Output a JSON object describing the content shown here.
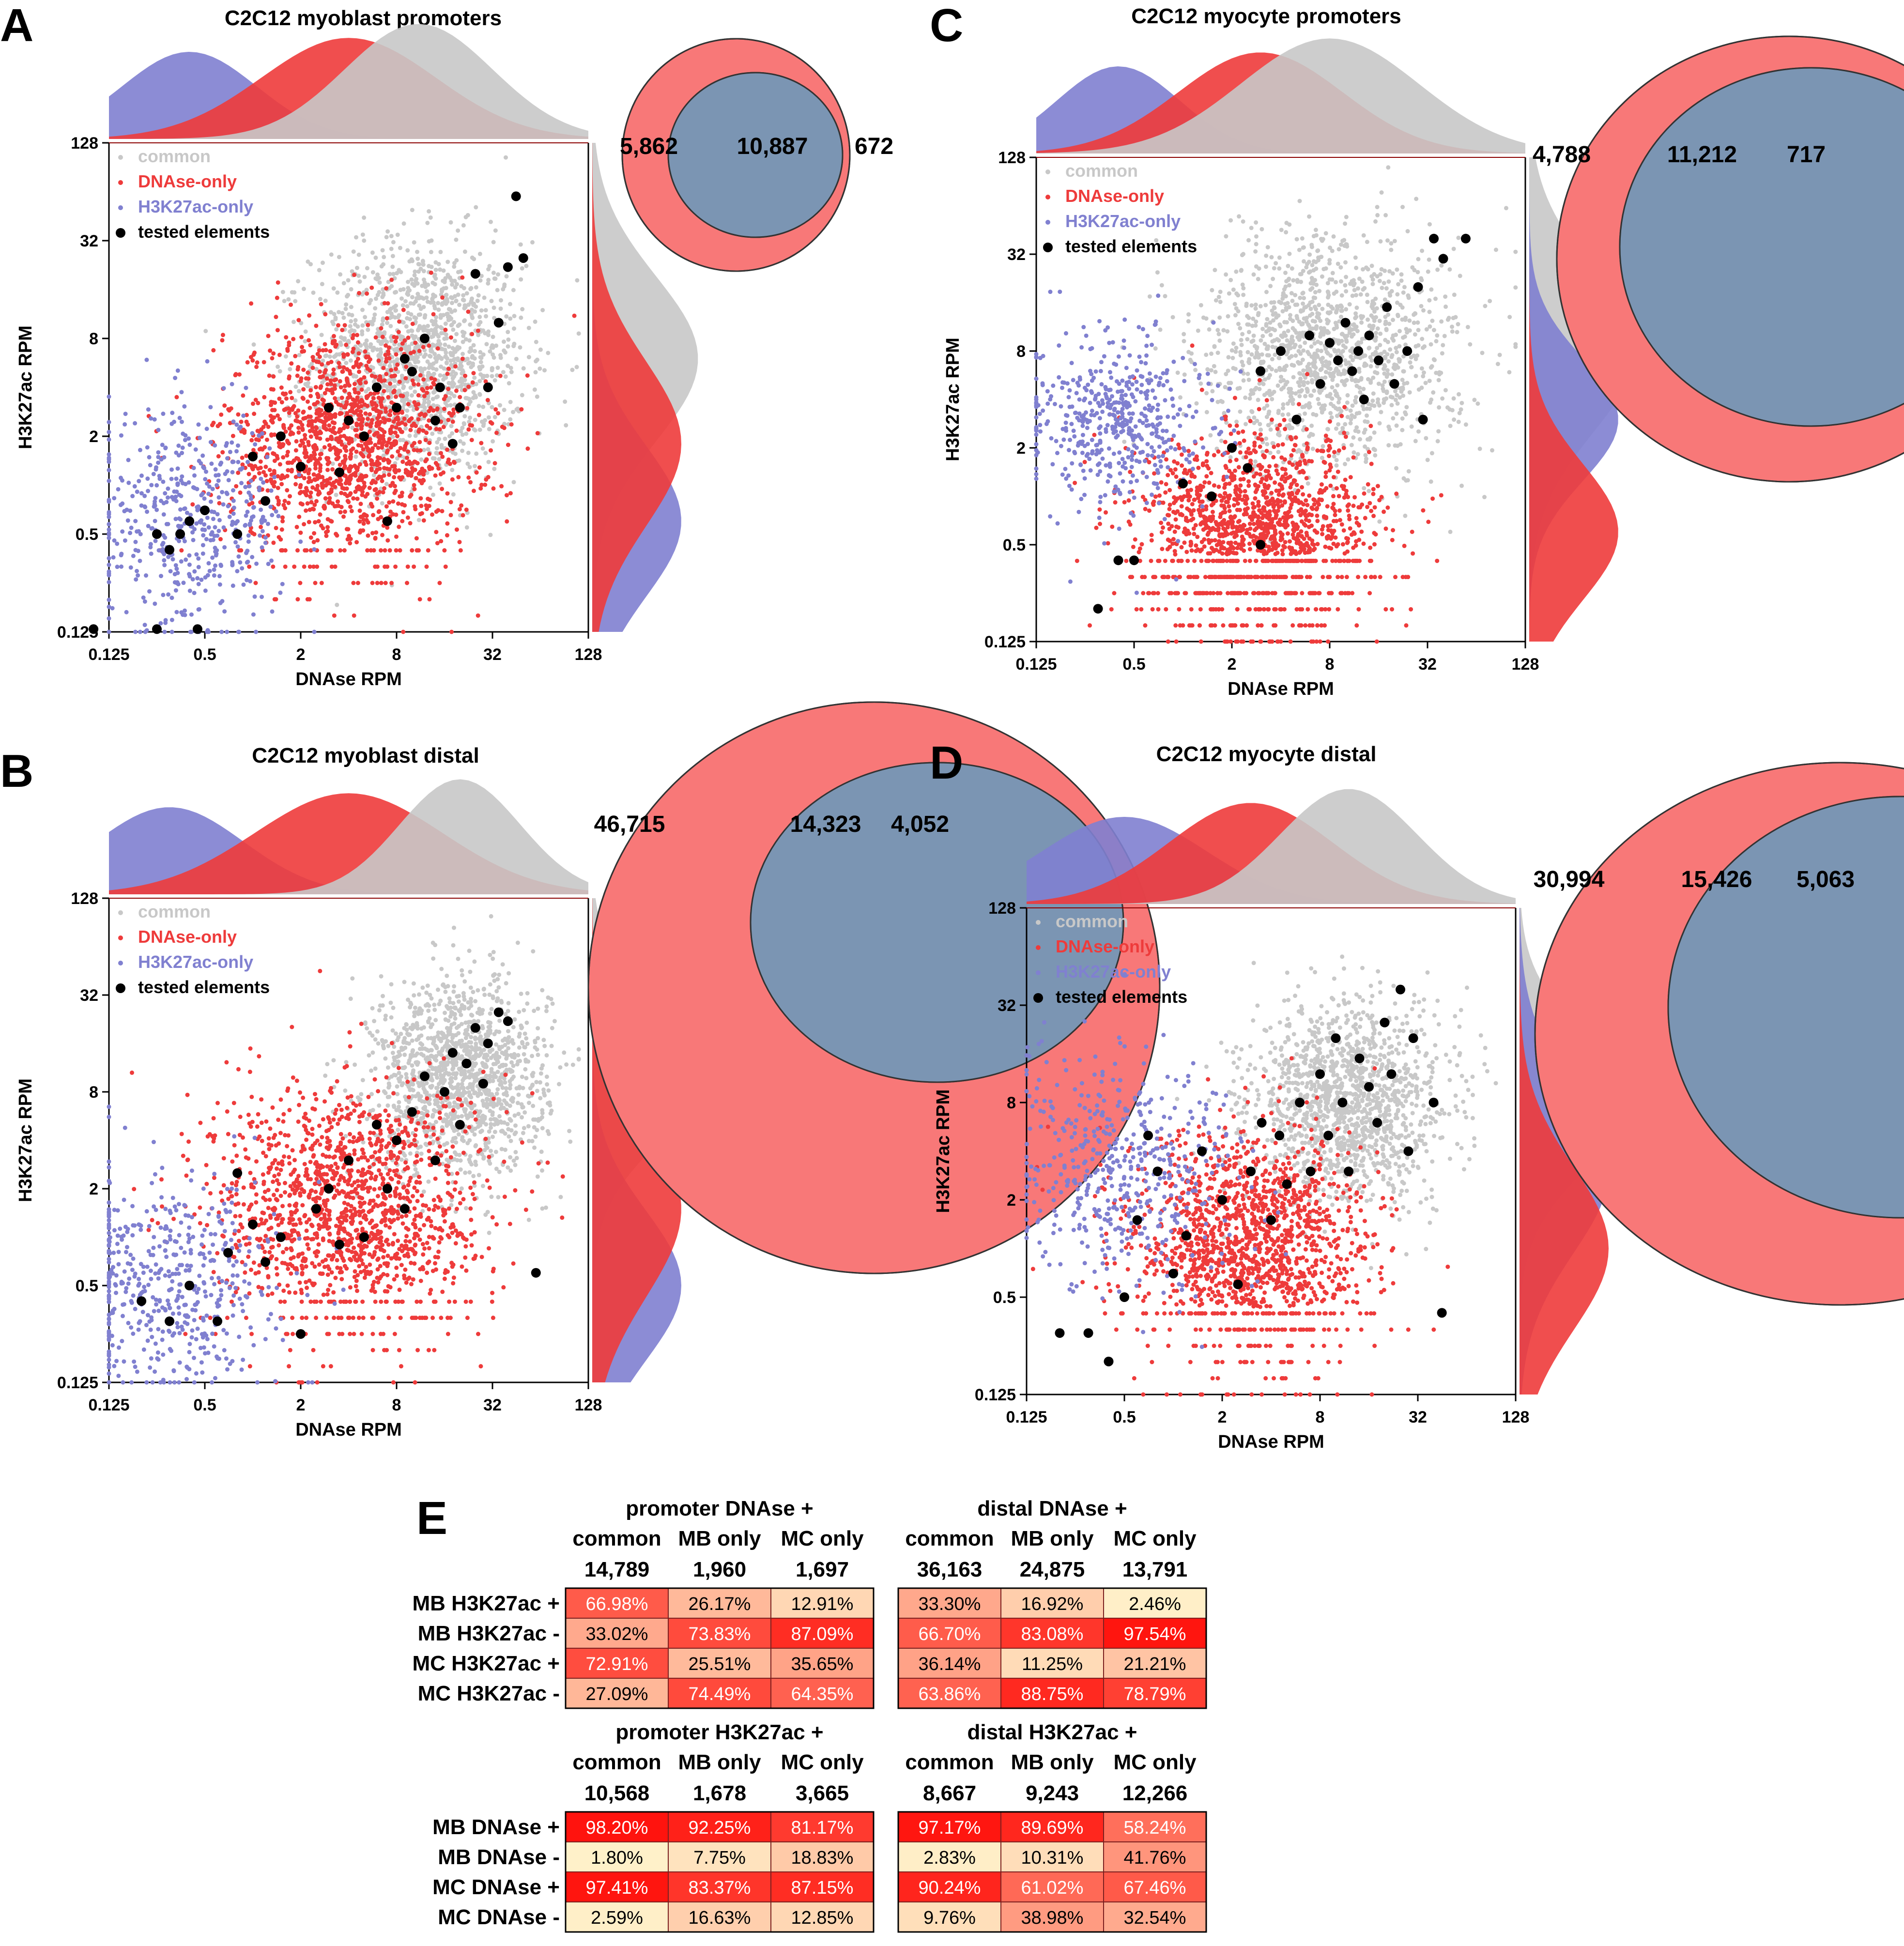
{
  "colors": {
    "common": "#c8c8c8",
    "dnase_only": "#ee3b3b",
    "h3k27ac_only": "#8080d0",
    "tested": "#000000",
    "venn_dnase": "#f87878",
    "venn_h3k27ac": "#5cc8f0",
    "venn_overlap": "#7b95b3"
  },
  "chart_data": [
    {
      "type": "scatter",
      "panel_label": "A",
      "title": "C2C12 myoblast promoters",
      "xlabel": "DNAse RPM",
      "ylabel": "H3K27ac RPM",
      "scale": "log2",
      "xlim": [
        0.125,
        128
      ],
      "ylim": [
        0.125,
        128
      ],
      "xticks": [
        "0.125",
        "0.5",
        "2",
        "8",
        "32",
        "128"
      ],
      "yticks": [
        "0.125",
        "0.5",
        "2",
        "8",
        "32",
        "128"
      ],
      "legend": [
        "common",
        "DNAse-only",
        "H3K27ac-only",
        "tested elements"
      ],
      "legend_position": "top-left",
      "venn": {
        "dnase_only": "5,862",
        "overlap": "10,887",
        "h3k27ac_only": "672"
      },
      "clouds": {
        "common": {
          "x": 11,
          "y": 6,
          "sx": 1.1,
          "sy": 1.2
        },
        "dnase_only": {
          "x": 4,
          "y": 1.8,
          "sx": 1.3,
          "sy": 1.2
        },
        "h3k27ac_only": {
          "x": 0.4,
          "y": 0.6,
          "sx": 1.0,
          "sy": 1.1
        }
      },
      "tested_elements": [
        [
          0.1,
          0.13
        ],
        [
          0.25,
          0.13
        ],
        [
          0.45,
          0.13
        ],
        [
          0.25,
          0.5
        ],
        [
          0.35,
          0.5
        ],
        [
          0.3,
          0.4
        ],
        [
          0.4,
          0.6
        ],
        [
          0.5,
          0.7
        ],
        [
          0.8,
          0.5
        ],
        [
          1,
          1.5
        ],
        [
          1.2,
          0.8
        ],
        [
          1.5,
          2
        ],
        [
          2,
          1.3
        ],
        [
          3,
          3
        ],
        [
          3.5,
          1.2
        ],
        [
          4,
          2.5
        ],
        [
          5,
          2
        ],
        [
          6,
          4
        ],
        [
          7,
          0.6
        ],
        [
          8,
          3
        ],
        [
          9,
          6
        ],
        [
          10,
          5
        ],
        [
          12,
          8
        ],
        [
          14,
          2.5
        ],
        [
          15,
          4
        ],
        [
          18,
          1.8
        ],
        [
          20,
          3
        ],
        [
          25,
          20
        ],
        [
          30,
          4
        ],
        [
          35,
          10
        ],
        [
          40,
          22
        ],
        [
          50,
          25
        ],
        [
          45,
          60
        ]
      ]
    },
    {
      "type": "scatter",
      "panel_label": "B",
      "title": "C2C12 myoblast distal",
      "xlabel": "DNAse RPM",
      "ylabel": "H3K27ac RPM",
      "scale": "log2",
      "xlim": [
        0.125,
        128
      ],
      "ylim": [
        0.125,
        128
      ],
      "xticks": [
        "0.125",
        "0.5",
        "2",
        "8",
        "32",
        "128"
      ],
      "yticks": [
        "0.125",
        "0.5",
        "2",
        "8",
        "32",
        "128"
      ],
      "legend": [
        "common",
        "DNAse-only",
        "H3K27ac-only",
        "tested elements"
      ],
      "legend_position": "top-left",
      "venn": {
        "dnase_only": "46,715",
        "overlap": "14,323",
        "h3k27ac_only": "4,052"
      },
      "clouds": {
        "common": {
          "x": 20,
          "y": 10,
          "sx": 0.9,
          "sy": 1.0
        },
        "dnase_only": {
          "x": 4,
          "y": 1.5,
          "sx": 1.4,
          "sy": 1.3
        },
        "h3k27ac_only": {
          "x": 0.3,
          "y": 0.5,
          "sx": 1.1,
          "sy": 1.1
        }
      },
      "tested_elements": [
        [
          0.2,
          0.4
        ],
        [
          0.3,
          0.3
        ],
        [
          0.4,
          0.5
        ],
        [
          0.6,
          0.3
        ],
        [
          0.7,
          0.8
        ],
        [
          0.8,
          2.5
        ],
        [
          1,
          1.2
        ],
        [
          1.2,
          0.7
        ],
        [
          1.5,
          1
        ],
        [
          2,
          0.25
        ],
        [
          2.5,
          1.5
        ],
        [
          3,
          2
        ],
        [
          3.5,
          0.9
        ],
        [
          4,
          3
        ],
        [
          5,
          1
        ],
        [
          6,
          5
        ],
        [
          7,
          2
        ],
        [
          8,
          4
        ],
        [
          9,
          1.5
        ],
        [
          10,
          6
        ],
        [
          12,
          10
        ],
        [
          14,
          3
        ],
        [
          16,
          8
        ],
        [
          18,
          14
        ],
        [
          20,
          5
        ],
        [
          22,
          12
        ],
        [
          25,
          20
        ],
        [
          28,
          9
        ],
        [
          30,
          16
        ],
        [
          35,
          25
        ],
        [
          40,
          22
        ],
        [
          60,
          0.6
        ]
      ]
    },
    {
      "type": "scatter",
      "panel_label": "C",
      "title": "C2C12 myocyte promoters",
      "xlabel": "DNAse RPM",
      "ylabel": "H3K27ac RPM",
      "scale": "log2",
      "xlim": [
        0.125,
        128
      ],
      "ylim": [
        0.125,
        128
      ],
      "xticks": [
        "0.125",
        "0.5",
        "2",
        "8",
        "32",
        "128"
      ],
      "yticks": [
        "0.125",
        "0.5",
        "2",
        "8",
        "32",
        "128"
      ],
      "legend": [
        "common",
        "DNAse-only",
        "H3K27ac-only",
        "tested elements"
      ],
      "legend_position": "top-left",
      "venn": {
        "dnase_only": "4,788",
        "overlap": "11,212",
        "h3k27ac_only": "717"
      },
      "clouds": {
        "common": {
          "x": 8,
          "y": 8,
          "sx": 1.3,
          "sy": 1.2
        },
        "dnase_only": {
          "x": 3,
          "y": 0.6,
          "sx": 1.2,
          "sy": 1.0
        },
        "h3k27ac_only": {
          "x": 0.4,
          "y": 3,
          "sx": 0.9,
          "sy": 0.9
        }
      },
      "tested_elements": [
        [
          0.3,
          0.2
        ],
        [
          0.4,
          0.4
        ],
        [
          0.5,
          0.4
        ],
        [
          1,
          1.2
        ],
        [
          1.5,
          1
        ],
        [
          2,
          2
        ],
        [
          2.5,
          1.5
        ],
        [
          3,
          0.5
        ],
        [
          3,
          6
        ],
        [
          4,
          8
        ],
        [
          5,
          3
        ],
        [
          6,
          10
        ],
        [
          7,
          5
        ],
        [
          8,
          9
        ],
        [
          9,
          7
        ],
        [
          10,
          12
        ],
        [
          11,
          6
        ],
        [
          12,
          8
        ],
        [
          13,
          4
        ],
        [
          14,
          10
        ],
        [
          16,
          7
        ],
        [
          18,
          15
        ],
        [
          20,
          5
        ],
        [
          24,
          8
        ],
        [
          28,
          20
        ],
        [
          30,
          3
        ],
        [
          35,
          40
        ],
        [
          40,
          30
        ],
        [
          55,
          40
        ]
      ]
    },
    {
      "type": "scatter",
      "panel_label": "D",
      "title": "C2C12 myocyte distal",
      "xlabel": "DNAse RPM",
      "ylabel": "H3K27ac RPM",
      "scale": "log2",
      "xlim": [
        0.125,
        128
      ],
      "ylim": [
        0.125,
        128
      ],
      "xticks": [
        "0.125",
        "0.5",
        "2",
        "8",
        "32",
        "128"
      ],
      "yticks": [
        "0.125",
        "0.5",
        "2",
        "8",
        "32",
        "128"
      ],
      "legend": [
        "common",
        "DNAse-only",
        "H3K27ac-only",
        "tested elements"
      ],
      "legend_position": "top-left",
      "venn": {
        "dnase_only": "30,994",
        "overlap": "15,426",
        "h3k27ac_only": "5,063"
      },
      "clouds": {
        "common": {
          "x": 12,
          "y": 8,
          "sx": 1.0,
          "sy": 1.0
        },
        "dnase_only": {
          "x": 3,
          "y": 1.0,
          "sx": 1.2,
          "sy": 1.2
        },
        "h3k27ac_only": {
          "x": 0.5,
          "y": 3,
          "sx": 1.2,
          "sy": 1.2
        }
      },
      "tested_elements": [
        [
          0.2,
          0.3
        ],
        [
          0.3,
          0.3
        ],
        [
          0.4,
          0.2
        ],
        [
          0.5,
          0.5
        ],
        [
          0.6,
          1.5
        ],
        [
          0.7,
          5
        ],
        [
          0.8,
          3
        ],
        [
          1,
          0.7
        ],
        [
          1.2,
          1.2
        ],
        [
          1.5,
          4
        ],
        [
          2,
          2
        ],
        [
          2.5,
          0.6
        ],
        [
          3,
          3
        ],
        [
          3.5,
          6
        ],
        [
          4,
          1.5
        ],
        [
          4.5,
          5
        ],
        [
          5,
          2.5
        ],
        [
          6,
          8
        ],
        [
          7,
          3
        ],
        [
          8,
          12
        ],
        [
          9,
          5
        ],
        [
          10,
          20
        ],
        [
          11,
          8
        ],
        [
          12,
          3
        ],
        [
          14,
          15
        ],
        [
          16,
          10
        ],
        [
          18,
          6
        ],
        [
          20,
          25
        ],
        [
          22,
          12
        ],
        [
          25,
          40
        ],
        [
          28,
          4
        ],
        [
          30,
          20
        ],
        [
          40,
          8
        ],
        [
          45,
          0.4
        ]
      ]
    },
    {
      "type": "table",
      "panel_label": "E",
      "tables": [
        {
          "title": "promoter DNAse +",
          "columns": [
            "common",
            "MB only",
            "MC only"
          ],
          "counts": [
            "14,789",
            "1,960",
            "1,697"
          ],
          "rows": [
            "MB H3K27ac +",
            "MB H3K27ac -",
            "MC H3K27ac +",
            "MC H3K27ac -"
          ],
          "values": [
            [
              66.98,
              26.17,
              12.91
            ],
            [
              33.02,
              73.83,
              87.09
            ],
            [
              72.91,
              25.51,
              35.65
            ],
            [
              27.09,
              74.49,
              64.35
            ]
          ],
          "display": [
            [
              "66.98%",
              "26.17%",
              "12.91%"
            ],
            [
              "33.02%",
              "73.83%",
              "87.09%"
            ],
            [
              "72.91%",
              "25.51%",
              "35.65%"
            ],
            [
              "27.09%",
              "74.49%",
              "64.35%"
            ]
          ]
        },
        {
          "title": "distal DNAse +",
          "columns": [
            "common",
            "MB only",
            "MC only"
          ],
          "counts": [
            "36,163",
            "24,875",
            "13,791"
          ],
          "rows": [
            "MB H3K27ac +",
            "MB H3K27ac -",
            "MC H3K27ac +",
            "MC H3K27ac -"
          ],
          "values": [
            [
              33.3,
              16.92,
              2.46
            ],
            [
              66.7,
              83.08,
              97.54
            ],
            [
              36.14,
              11.25,
              21.21
            ],
            [
              63.86,
              88.75,
              78.79
            ]
          ],
          "display": [
            [
              "33.30%",
              "16.92%",
              "2.46%"
            ],
            [
              "66.70%",
              "83.08%",
              "97.54%"
            ],
            [
              "36.14%",
              "11.25%",
              "21.21%"
            ],
            [
              "63.86%",
              "88.75%",
              "78.79%"
            ]
          ]
        },
        {
          "title": "promoter H3K27ac +",
          "columns": [
            "common",
            "MB only",
            "MC only"
          ],
          "counts": [
            "10,568",
            "1,678",
            "3,665"
          ],
          "rows": [
            "MB DNAse +",
            "MB DNAse -",
            "MC DNAse +",
            "MC DNAse -"
          ],
          "values": [
            [
              98.2,
              92.25,
              81.17
            ],
            [
              1.8,
              7.75,
              18.83
            ],
            [
              97.41,
              83.37,
              87.15
            ],
            [
              2.59,
              16.63,
              12.85
            ]
          ],
          "display": [
            [
              "98.20%",
              "92.25%",
              "81.17%"
            ],
            [
              "1.80%",
              "7.75%",
              "18.83%"
            ],
            [
              "97.41%",
              "83.37%",
              "87.15%"
            ],
            [
              "2.59%",
              "16.63%",
              "12.85%"
            ]
          ]
        },
        {
          "title": "distal H3K27ac +",
          "columns": [
            "common",
            "MB only",
            "MC only"
          ],
          "counts": [
            "8,667",
            "9,243",
            "12,266"
          ],
          "rows": [
            "MB DNAse +",
            "MB DNAse -",
            "MC DNAse +",
            "MC DNAse -"
          ],
          "values": [
            [
              97.17,
              89.69,
              58.24
            ],
            [
              2.83,
              10.31,
              41.76
            ],
            [
              90.24,
              61.02,
              67.46
            ],
            [
              9.76,
              38.98,
              32.54
            ]
          ],
          "display": [
            [
              "97.17%",
              "89.69%",
              "58.24%"
            ],
            [
              "2.83%",
              "10.31%",
              "41.76%"
            ],
            [
              "90.24%",
              "61.02%",
              "67.46%"
            ],
            [
              "9.76%",
              "38.98%",
              "32.54%"
            ]
          ]
        }
      ]
    }
  ]
}
